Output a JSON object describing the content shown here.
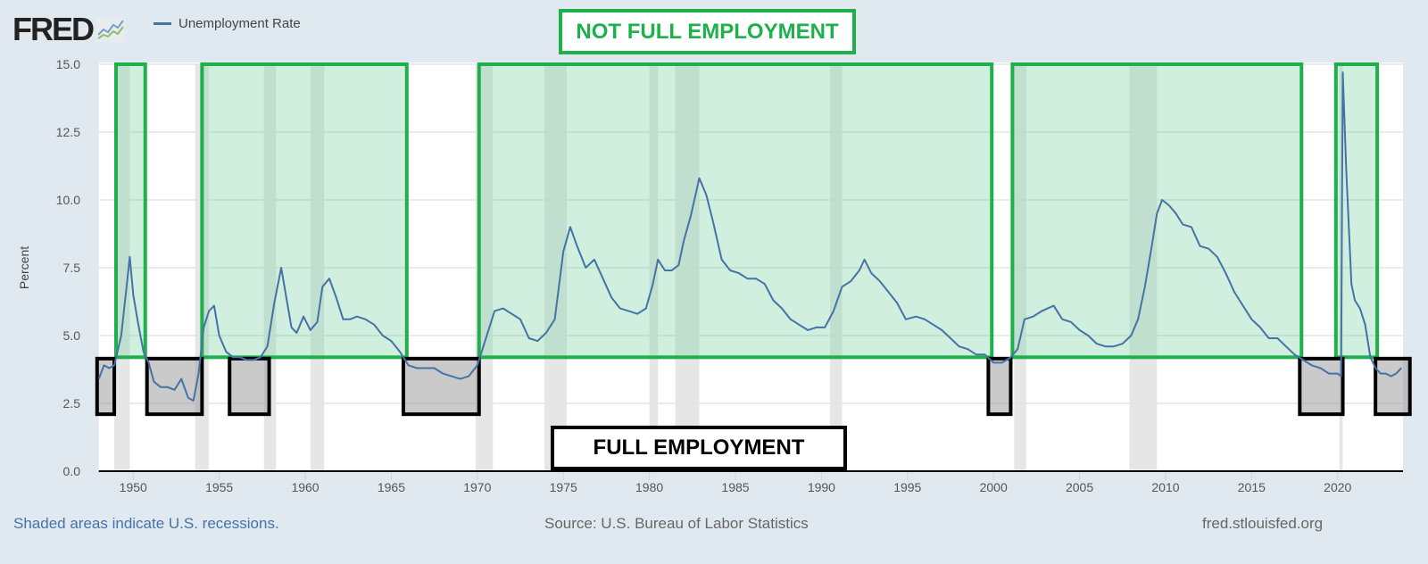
{
  "header": {
    "logo": "FRED",
    "logo_icon": "line-chart-icon",
    "legend_label": "Unemployment Rate"
  },
  "footer": {
    "note": "Shaded areas indicate U.S. recessions.",
    "source": "Source: U.S. Bureau of Labor Statistics",
    "site": "fred.stlouisfed.org"
  },
  "annotations": {
    "not_full": "NOT FULL EMPLOYMENT",
    "full": "FULL EMPLOYMENT",
    "green_boxes": [
      [
        1949.0,
        1950.7
      ],
      [
        1954.0,
        1965.9
      ],
      [
        1970.1,
        1999.9
      ],
      [
        2001.1,
        2017.9
      ],
      [
        2019.9,
        2022.3
      ]
    ],
    "green_range": [
      4.2,
      15.0
    ],
    "black_boxes": [
      [
        1947.9,
        1948.9
      ],
      [
        1950.8,
        1954.0
      ],
      [
        1955.6,
        1957.9
      ],
      [
        1965.7,
        1970.1
      ],
      [
        1999.7,
        2001.0
      ],
      [
        2017.8,
        2020.3
      ],
      [
        2022.2,
        2024.2
      ]
    ],
    "black_range": [
      2.1,
      4.15
    ],
    "green_color": "#1db04b",
    "black_color": "#000000"
  },
  "chart_data": {
    "type": "line",
    "title": "",
    "ylabel": "Percent",
    "xlabel": "",
    "xlim": [
      1948,
      2023.8
    ],
    "ylim": [
      0,
      15
    ],
    "yticks": [
      "0.0",
      "2.5",
      "5.0",
      "7.5",
      "10.0",
      "12.5",
      "15.0"
    ],
    "xticks": [
      "1950",
      "1955",
      "1960",
      "1965",
      "1970",
      "1975",
      "1980",
      "1985",
      "1990",
      "1995",
      "2000",
      "2005",
      "2010",
      "2015",
      "2020"
    ],
    "grid": true,
    "legend": "top-left",
    "series_color": "#4572a7",
    "recessions": [
      [
        1948.9,
        1949.8
      ],
      [
        1953.6,
        1954.4
      ],
      [
        1957.6,
        1958.3
      ],
      [
        1960.3,
        1961.1
      ],
      [
        1969.9,
        1970.9
      ],
      [
        1973.9,
        1975.2
      ],
      [
        1980.0,
        1980.5
      ],
      [
        1981.5,
        1982.9
      ],
      [
        1990.5,
        1991.2
      ],
      [
        2001.2,
        2001.9
      ],
      [
        2007.9,
        2009.5
      ],
      [
        2020.1,
        2020.3
      ]
    ],
    "series": [
      {
        "name": "Unemployment Rate",
        "x": [
          1948.0,
          1948.3,
          1948.6,
          1948.9,
          1949.3,
          1949.6,
          1949.8,
          1950.0,
          1950.3,
          1950.6,
          1950.9,
          1951.2,
          1951.6,
          1952.0,
          1952.4,
          1952.8,
          1953.2,
          1953.5,
          1953.8,
          1954.1,
          1954.4,
          1954.7,
          1955.0,
          1955.4,
          1955.8,
          1956.2,
          1956.6,
          1957.0,
          1957.4,
          1957.8,
          1958.2,
          1958.6,
          1958.9,
          1959.2,
          1959.5,
          1959.9,
          1960.3,
          1960.7,
          1961.0,
          1961.4,
          1961.8,
          1962.2,
          1962.6,
          1963.0,
          1963.5,
          1964.0,
          1964.5,
          1965.0,
          1965.5,
          1966.0,
          1966.5,
          1967.0,
          1967.5,
          1968.0,
          1968.5,
          1969.0,
          1969.5,
          1970.0,
          1970.5,
          1971.0,
          1971.5,
          1972.0,
          1972.5,
          1973.0,
          1973.5,
          1974.0,
          1974.5,
          1975.0,
          1975.4,
          1975.8,
          1976.3,
          1976.8,
          1977.3,
          1977.8,
          1978.3,
          1978.8,
          1979.3,
          1979.8,
          1980.2,
          1980.5,
          1980.9,
          1981.3,
          1981.7,
          1982.0,
          1982.4,
          1982.9,
          1983.3,
          1983.7,
          1984.2,
          1984.7,
          1985.2,
          1985.7,
          1986.2,
          1986.7,
          1987.2,
          1987.7,
          1988.2,
          1988.7,
          1989.2,
          1989.7,
          1990.2,
          1990.7,
          1991.2,
          1991.7,
          1992.2,
          1992.5,
          1992.9,
          1993.4,
          1993.9,
          1994.4,
          1994.9,
          1995.5,
          1996.0,
          1996.5,
          1997.0,
          1997.5,
          1998.0,
          1998.5,
          1999.0,
          1999.5,
          2000.0,
          2000.5,
          2001.0,
          2001.4,
          2001.8,
          2002.3,
          2002.8,
          2003.5,
          2004.0,
          2004.5,
          2005.0,
          2005.5,
          2006.0,
          2006.5,
          2007.0,
          2007.5,
          2008.0,
          2008.4,
          2008.8,
          2009.2,
          2009.5,
          2009.8,
          2010.2,
          2010.6,
          2011.0,
          2011.5,
          2012.0,
          2012.5,
          2013.0,
          2013.5,
          2014.0,
          2014.5,
          2015.0,
          2015.5,
          2016.0,
          2016.5,
          2017.0,
          2017.5,
          2018.0,
          2018.5,
          2019.0,
          2019.5,
          2020.0,
          2020.2,
          2020.3,
          2020.5,
          2020.8,
          2021.0,
          2021.3,
          2021.6,
          2021.9,
          2022.2,
          2022.5,
          2022.8,
          2023.1,
          2023.4,
          2023.7
        ],
        "values": [
          3.4,
          3.9,
          3.8,
          3.9,
          5.0,
          6.7,
          7.9,
          6.5,
          5.4,
          4.4,
          4.0,
          3.3,
          3.1,
          3.1,
          3.0,
          3.4,
          2.7,
          2.6,
          3.6,
          5.3,
          5.9,
          6.1,
          5.0,
          4.4,
          4.2,
          4.2,
          4.1,
          4.1,
          4.2,
          4.6,
          6.2,
          7.5,
          6.4,
          5.3,
          5.1,
          5.7,
          5.2,
          5.5,
          6.8,
          7.1,
          6.4,
          5.6,
          5.6,
          5.7,
          5.6,
          5.4,
          5.0,
          4.8,
          4.4,
          3.9,
          3.8,
          3.8,
          3.8,
          3.6,
          3.5,
          3.4,
          3.5,
          3.9,
          4.9,
          5.9,
          6.0,
          5.8,
          5.6,
          4.9,
          4.8,
          5.1,
          5.6,
          8.1,
          9.0,
          8.3,
          7.5,
          7.8,
          7.1,
          6.4,
          6.0,
          5.9,
          5.8,
          6.0,
          6.9,
          7.8,
          7.4,
          7.4,
          7.6,
          8.5,
          9.4,
          10.8,
          10.2,
          9.2,
          7.8,
          7.4,
          7.3,
          7.1,
          7.1,
          6.9,
          6.3,
          6.0,
          5.6,
          5.4,
          5.2,
          5.3,
          5.3,
          5.9,
          6.8,
          7.0,
          7.4,
          7.8,
          7.3,
          7.0,
          6.6,
          6.2,
          5.6,
          5.7,
          5.6,
          5.4,
          5.2,
          4.9,
          4.6,
          4.5,
          4.3,
          4.3,
          4.0,
          4.0,
          4.2,
          4.5,
          5.6,
          5.7,
          5.9,
          6.1,
          5.6,
          5.5,
          5.2,
          5.0,
          4.7,
          4.6,
          4.6,
          4.7,
          5.0,
          5.6,
          6.8,
          8.3,
          9.5,
          10.0,
          9.8,
          9.5,
          9.1,
          9.0,
          8.3,
          8.2,
          7.9,
          7.3,
          6.6,
          6.1,
          5.6,
          5.3,
          4.9,
          4.9,
          4.6,
          4.3,
          4.1,
          3.9,
          3.8,
          3.6,
          3.6,
          3.5,
          14.7,
          11.1,
          6.9,
          6.3,
          6.0,
          5.4,
          4.2,
          3.8,
          3.6,
          3.6,
          3.5,
          3.6,
          3.8
        ]
      }
    ]
  }
}
